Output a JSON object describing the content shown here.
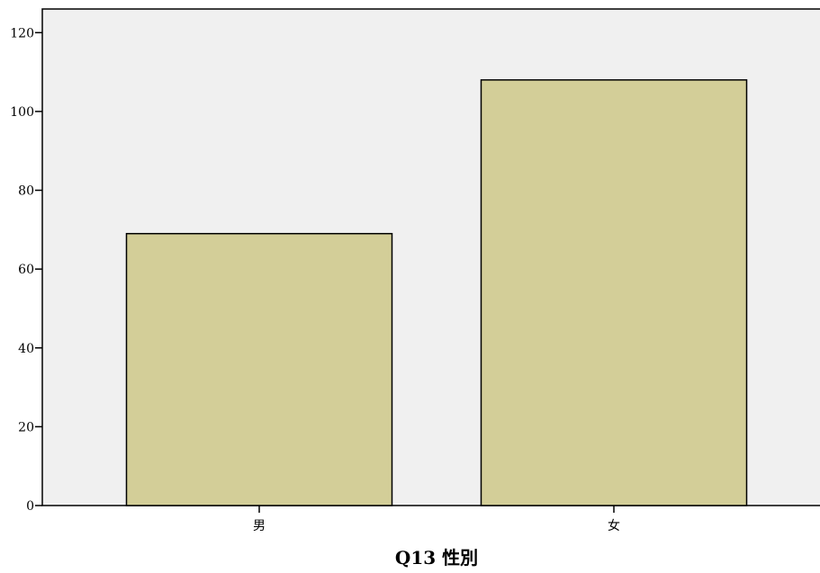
{
  "chart_data": {
    "type": "bar",
    "title": "",
    "xlabel": "Q13 性別",
    "ylabel": "",
    "categories": [
      "男",
      "女"
    ],
    "values": [
      69,
      108
    ],
    "ylim": [
      0,
      126
    ],
    "yticks": [
      0,
      20,
      40,
      60,
      80,
      100,
      120
    ],
    "ytick_labels": [
      "0",
      "20",
      "40",
      "60",
      "80",
      "100",
      "120"
    ],
    "grid": false,
    "legend": "none",
    "colors": {
      "bar_fill": "#d3ce98",
      "bar_stroke": "#000000",
      "plot_background": "#f0f0f0"
    }
  }
}
